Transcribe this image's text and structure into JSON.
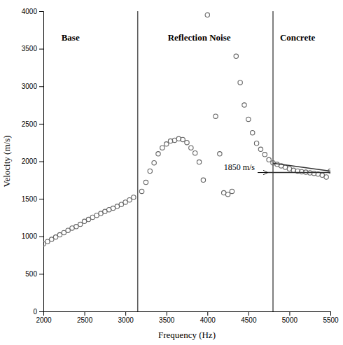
{
  "chart_data": {
    "type": "scatter",
    "xlabel": "Frequency (Hz)",
    "ylabel": "Velocity (m/s)",
    "xlim": [
      2000,
      5500
    ],
    "ylim": [
      0,
      4000
    ],
    "xticks": [
      2000,
      2500,
      3000,
      3500,
      4000,
      4500,
      5000,
      5500
    ],
    "yticks": [
      0,
      500,
      1000,
      1500,
      2000,
      2500,
      3000,
      3500,
      4000
    ],
    "grid": false,
    "series": [
      {
        "type": "scatter",
        "marker": "open-circle",
        "color": "#666666",
        "x": [
          2000,
          2050,
          2100,
          2150,
          2200,
          2250,
          2300,
          2350,
          2400,
          2450,
          2500,
          2550,
          2600,
          2650,
          2700,
          2750,
          2800,
          2850,
          2900,
          2950,
          3000,
          3050,
          3100,
          3200,
          3250,
          3300,
          3350,
          3400,
          3450,
          3500,
          3550,
          3600,
          3650,
          3700,
          3750,
          3800,
          3850,
          3900,
          3950,
          4000,
          4100,
          4150,
          4200,
          4250,
          4300,
          4350,
          4400,
          4450,
          4500,
          4550,
          4600,
          4650,
          4700,
          4750,
          4800,
          4850,
          4900,
          4950,
          5000,
          5050,
          5100,
          5150,
          5200,
          5250,
          5300,
          5350,
          5400,
          5450,
          5500
        ],
        "values": [
          900,
          930,
          960,
          990,
          1020,
          1050,
          1080,
          1110,
          1130,
          1160,
          1200,
          1225,
          1255,
          1280,
          1305,
          1330,
          1355,
          1375,
          1400,
          1425,
          1455,
          1485,
          1520,
          1600,
          1720,
          1870,
          1980,
          2100,
          2180,
          2230,
          2270,
          2280,
          2300,
          2290,
          2250,
          2180,
          2110,
          1990,
          1750,
          3950,
          2600,
          2100,
          1580,
          1560,
          1600,
          3400,
          3050,
          2750,
          2560,
          2380,
          2240,
          2160,
          2090,
          2020,
          1980,
          1960,
          1940,
          1920,
          1900,
          1880,
          1870,
          1860,
          1855,
          1845,
          1840,
          1830,
          1815,
          1790,
          1870
        ]
      },
      {
        "type": "line",
        "line_style": "solid",
        "color": "#333333",
        "x": [
          4800,
          5500
        ],
        "values": [
          1975,
          1870
        ]
      },
      {
        "type": "line",
        "line_style": "solid",
        "color": "#333333",
        "x": [
          4730,
          5500
        ],
        "values": [
          1850,
          1850
        ]
      }
    ],
    "vlines": {
      "values": [
        3150,
        4800
      ],
      "color": "#555555"
    },
    "annotations": [
      {
        "text": "Base",
        "x": 2330,
        "y": 3650
      },
      {
        "text": "Reflection Noise",
        "x": 3900,
        "y": 3650
      },
      {
        "text": "Concrete",
        "x": 5100,
        "y": 3650
      },
      {
        "text": "1850 m/s",
        "x": 4200,
        "y": 1850,
        "arrow_to": [
          4730,
          1850
        ]
      }
    ]
  }
}
